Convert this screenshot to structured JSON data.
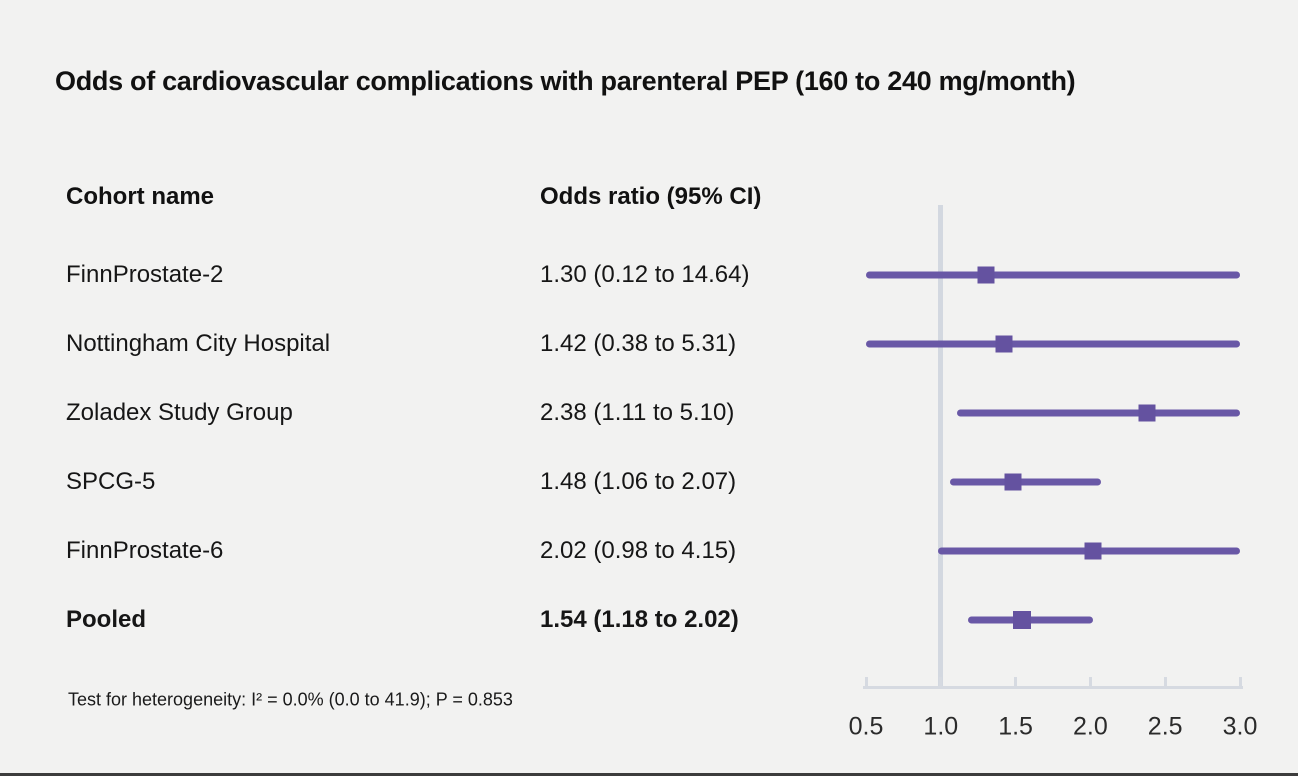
{
  "title": "Odds of cardiovascular complications with parenteral PEP (160 to 240 mg/month)",
  "columns": {
    "cohort": "Cohort name",
    "odds": "Odds ratio (95% CI)"
  },
  "footnote": "Test for heterogeneity: I² = 0.0% (0.0 to 41.9); P = 0.853",
  "colors": {
    "marker": "#6452a0",
    "ci_line": "#6958a6",
    "axis": "#d6dae1",
    "reference_line": "#d3d8e0",
    "background": "#f2f2f1"
  },
  "chart_data": {
    "type": "forest",
    "title": "Odds of cardiovascular complications with parenteral PEP (160 to 240 mg/month)",
    "x_axis": {
      "scale": "linear",
      "range": [
        0.5,
        3.0
      ],
      "ticks": [
        0.5,
        1.0,
        1.5,
        2.0,
        2.5,
        3.0
      ],
      "tick_labels": [
        "0.5",
        "1.0",
        "1.5",
        "2.0",
        "2.5",
        "3.0"
      ],
      "reference_value": 1.0
    },
    "rows": [
      {
        "label": "FinnProstate-2",
        "display": "1.30 (0.12 to 14.64)",
        "or": 1.3,
        "ci_low": 0.12,
        "ci_high": 14.64,
        "pooled": false
      },
      {
        "label": "Nottingham City Hospital",
        "display": "1.42 (0.38 to 5.31)",
        "or": 1.42,
        "ci_low": 0.38,
        "ci_high": 5.31,
        "pooled": false
      },
      {
        "label": "Zoladex Study Group",
        "display": "2.38 (1.11 to 5.10)",
        "or": 2.38,
        "ci_low": 1.11,
        "ci_high": 5.1,
        "pooled": false
      },
      {
        "label": "SPCG-5",
        "display": "1.48 (1.06 to 2.07)",
        "or": 1.48,
        "ci_low": 1.06,
        "ci_high": 2.07,
        "pooled": false
      },
      {
        "label": "FinnProstate-6",
        "display": "2.02 (0.98 to 4.15)",
        "or": 2.02,
        "ci_low": 0.98,
        "ci_high": 4.15,
        "pooled": false
      },
      {
        "label": "Pooled",
        "display": "1.54 (1.18 to 2.02)",
        "or": 1.54,
        "ci_low": 1.18,
        "ci_high": 2.02,
        "pooled": true
      }
    ]
  }
}
